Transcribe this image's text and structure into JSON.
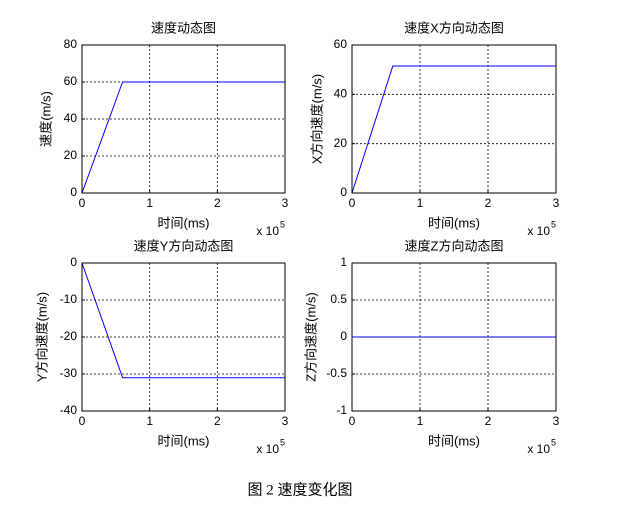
{
  "chart_data": [
    {
      "type": "line",
      "title": "速度动态图",
      "xlabel": "时间(ms)",
      "ylabel": "速度(m/s)",
      "x_multiplier": "x 10",
      "x_multiplier_power": "5",
      "x": [
        0,
        0.6,
        3
      ],
      "series": [
        {
          "color": "#0000ff",
          "values": [
            0,
            60,
            60
          ]
        }
      ],
      "xlim": [
        0,
        3
      ],
      "xticks": [
        0,
        1,
        2,
        3
      ],
      "ylim": [
        0,
        80
      ],
      "yticks": [
        0,
        20,
        40,
        60,
        80
      ],
      "grid": true
    },
    {
      "type": "line",
      "title": "速度X方向动态图",
      "xlabel": "时间(ms)",
      "ylabel": "X方向速度(m/s)",
      "x_multiplier": "x 10",
      "x_multiplier_power": "5",
      "x": [
        0,
        0.6,
        3
      ],
      "series": [
        {
          "color": "#0000ff",
          "values": [
            0,
            51.5,
            51.5
          ]
        }
      ],
      "xlim": [
        0,
        3
      ],
      "xticks": [
        0,
        1,
        2,
        3
      ],
      "ylim": [
        0,
        60
      ],
      "yticks": [
        0,
        20,
        40,
        60
      ],
      "grid": true
    },
    {
      "type": "line",
      "title": "速度Y方向动态图",
      "xlabel": "时间(ms)",
      "ylabel": "Y方向速度(m/s)",
      "x_multiplier": "x 10",
      "x_multiplier_power": "5",
      "x": [
        0,
        0.6,
        3
      ],
      "series": [
        {
          "color": "#0000ff",
          "values": [
            0,
            -31,
            -31
          ]
        }
      ],
      "xlim": [
        0,
        3
      ],
      "xticks": [
        0,
        1,
        2,
        3
      ],
      "ylim": [
        -40,
        0
      ],
      "yticks": [
        -40,
        -30,
        -20,
        -10,
        0
      ],
      "grid": true
    },
    {
      "type": "line",
      "title": "速度Z方向动态图",
      "xlabel": "时间(ms)",
      "ylabel": "Z方向速度(m/s)",
      "x_multiplier": "x 10",
      "x_multiplier_power": "5",
      "x": [
        0,
        0.6,
        3
      ],
      "series": [
        {
          "color": "#0000ff",
          "values": [
            0,
            0,
            0
          ]
        }
      ],
      "xlim": [
        0,
        3
      ],
      "xticks": [
        0,
        1,
        2,
        3
      ],
      "ylim": [
        -1,
        1
      ],
      "yticks": [
        -1,
        -0.5,
        0,
        0.5,
        1
      ],
      "grid": true
    }
  ],
  "caption": "图 2  速度变化图"
}
